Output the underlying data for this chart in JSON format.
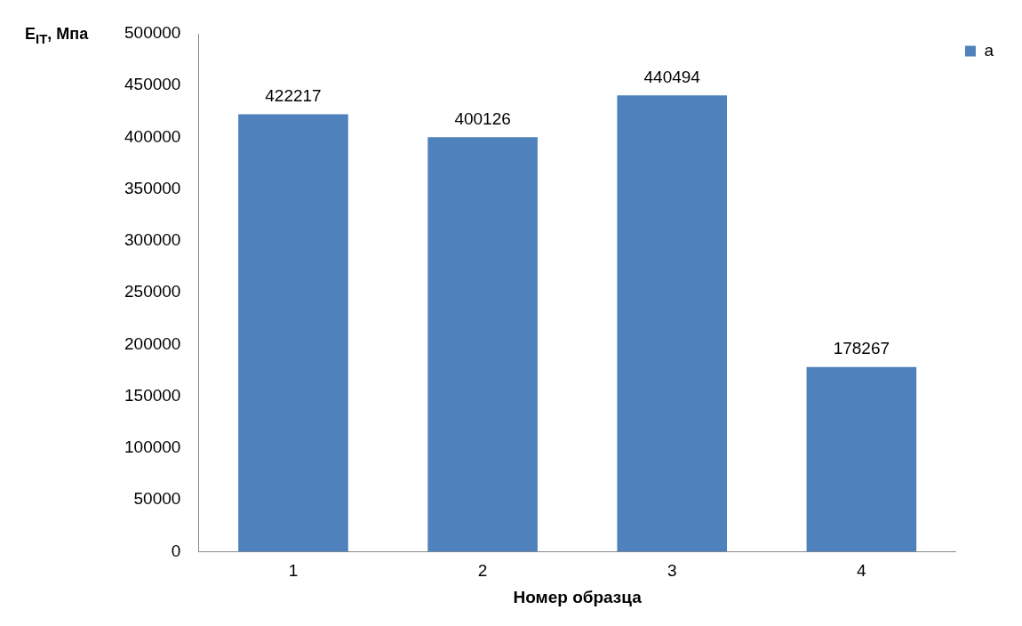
{
  "chart_data": {
    "type": "bar",
    "ylabel": "E$_{IT}$, Мпа",
    "xlabel": "Номер образца",
    "categories": [
      "1",
      "2",
      "3",
      "4"
    ],
    "series": [
      {
        "name": "a",
        "color": "#4f81bd",
        "values": [
          422217,
          400126,
          440494,
          178267
        ]
      }
    ],
    "ylim": [
      0,
      500000
    ],
    "yticks": [
      0,
      50000,
      100000,
      150000,
      200000,
      250000,
      300000,
      350000,
      400000,
      450000,
      500000
    ],
    "data_labels": true,
    "legend": "top right",
    "grid": false
  }
}
